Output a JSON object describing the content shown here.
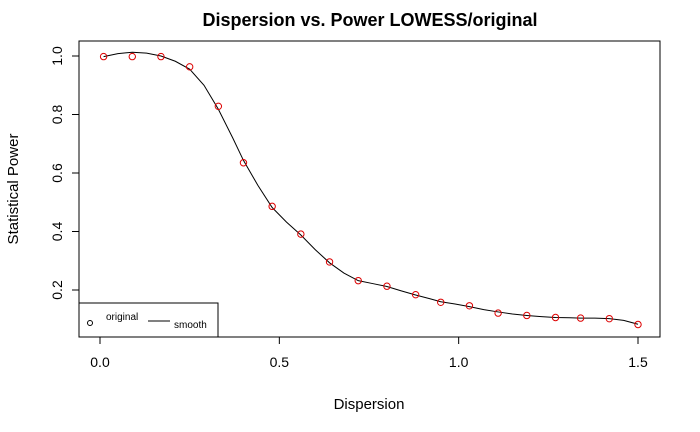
{
  "chart_data": {
    "type": "scatter",
    "title": "Dispersion vs. Power LOWESS/original",
    "xlabel": "Dispersion",
    "ylabel": "Statistical Power",
    "xlim": [
      0,
      1.5
    ],
    "ylim": [
      0.08,
      1.01
    ],
    "x_ticks": [
      0.0,
      0.5,
      1.0,
      1.5
    ],
    "x_tick_labels": [
      "0.0",
      "0.5",
      "1.0",
      "1.5"
    ],
    "y_ticks": [
      0.2,
      0.4,
      0.6,
      0.8,
      1.0
    ],
    "y_tick_labels": [
      "0.2",
      "0.4",
      "0.6",
      "0.8",
      "1.0"
    ],
    "grid": false,
    "legend": {
      "position": "bottom-left",
      "entries": [
        "original",
        "smooth"
      ]
    },
    "series": [
      {
        "name": "original",
        "kind": "points",
        "color": "#dd0000",
        "x": [
          0.01,
          0.09,
          0.17,
          0.25,
          0.33,
          0.4,
          0.48,
          0.56,
          0.64,
          0.72,
          0.8,
          0.88,
          0.95,
          1.03,
          1.11,
          1.19,
          1.27,
          1.34,
          1.42,
          1.5
        ],
        "y": [
          0.998,
          0.998,
          0.998,
          0.963,
          0.828,
          0.635,
          0.486,
          0.391,
          0.296,
          0.232,
          0.213,
          0.184,
          0.158,
          0.146,
          0.121,
          0.113,
          0.106,
          0.104,
          0.102,
          0.082
        ]
      },
      {
        "name": "smooth",
        "kind": "line",
        "color": "#000000",
        "x": [
          0.01,
          0.05,
          0.09,
          0.13,
          0.17,
          0.21,
          0.25,
          0.29,
          0.33,
          0.37,
          0.4,
          0.44,
          0.48,
          0.52,
          0.56,
          0.6,
          0.64,
          0.68,
          0.72,
          0.76,
          0.8,
          0.84,
          0.88,
          0.92,
          0.95,
          0.99,
          1.03,
          1.07,
          1.11,
          1.15,
          1.19,
          1.23,
          1.27,
          1.31,
          1.34,
          1.38,
          1.42,
          1.46,
          1.5
        ],
        "y": [
          0.998,
          1.008,
          1.013,
          1.01,
          1.0,
          0.982,
          0.955,
          0.9,
          0.818,
          0.72,
          0.643,
          0.558,
          0.482,
          0.432,
          0.388,
          0.338,
          0.293,
          0.258,
          0.232,
          0.222,
          0.212,
          0.197,
          0.183,
          0.17,
          0.16,
          0.152,
          0.143,
          0.133,
          0.125,
          0.118,
          0.113,
          0.109,
          0.106,
          0.105,
          0.104,
          0.104,
          0.102,
          0.096,
          0.083
        ]
      }
    ]
  }
}
